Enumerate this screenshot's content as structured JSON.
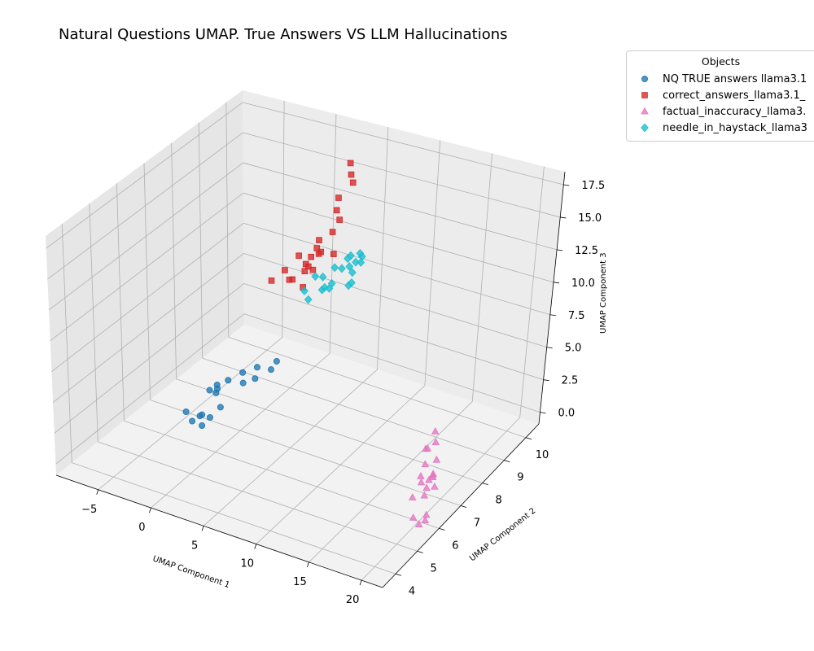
{
  "chart_data": {
    "type": "scatter",
    "projection": "3d",
    "title": "Natural Questions UMAP. True Answers VS LLM Hallucinations",
    "xlabel": "UMAP Component 1",
    "ylabel": "UMAP Component 2",
    "zlabel": "UMAP Component 3",
    "xlim": [
      -9,
      22
    ],
    "ylim": [
      3.4,
      10.6
    ],
    "zlim": [
      -0.9,
      18.5
    ],
    "xticks": [
      "−5",
      "0",
      "5",
      "10",
      "15",
      "20"
    ],
    "yticks": [
      "4",
      "5",
      "6",
      "7",
      "8",
      "9",
      "10"
    ],
    "zticks": [
      "0.0",
      "2.5",
      "5.0",
      "7.5",
      "10.0",
      "12.5",
      "15.0",
      "17.5"
    ],
    "grid": true,
    "legend": {
      "title": "Objects",
      "placement": "upper-right-outside"
    },
    "series": [
      {
        "name": "NQ TRUE answers llama3.1",
        "display_name": "NQ TRUE answers llama3.1",
        "marker": "circle",
        "color": "#1f77b4",
        "points": [
          [
            -3.3,
            8.4,
            0.5
          ],
          [
            -2.6,
            8.7,
            0.6
          ],
          [
            -1.9,
            9.2,
            0.4
          ],
          [
            -3.0,
            8.3,
            -0.1
          ],
          [
            -4.0,
            8.1,
            0.2
          ],
          [
            -4.2,
            7.7,
            -0.2
          ],
          [
            -2.3,
            8.5,
            0.1
          ],
          [
            -4.6,
            7.9,
            0.0
          ],
          [
            -1.7,
            8.9,
            0.3
          ],
          [
            -5.1,
            7.8,
            -0.4
          ],
          [
            -5.1,
            8.1,
            -0.8
          ],
          [
            -3.5,
            7.6,
            -1.0
          ],
          [
            -4.6,
            7.3,
            -1.4
          ],
          [
            -3.8,
            7.3,
            -1.4
          ],
          [
            -6.2,
            7.3,
            -1.6
          ],
          [
            -4.1,
            7.1,
            -1.8
          ],
          [
            -5.6,
            7.3,
            -2.2
          ],
          [
            -5.6,
            7.6,
            -2.3
          ]
        ]
      },
      {
        "name": "correct_answers_llama3.1",
        "display_name": "correct_answers_llama3.1_",
        "marker": "square",
        "color": "#d62728",
        "points": [
          [
            4.0,
            9.6,
            17.2
          ],
          [
            4.1,
            9.6,
            16.3
          ],
          [
            4.3,
            9.6,
            15.7
          ],
          [
            3.2,
            9.5,
            14.4
          ],
          [
            3.3,
            9.4,
            13.6
          ],
          [
            3.6,
            9.4,
            12.9
          ],
          [
            3.2,
            9.3,
            12.0
          ],
          [
            3.6,
            9.2,
            10.5
          ],
          [
            2.4,
            9.1,
            11.5
          ],
          [
            2.2,
            9.1,
            10.8
          ],
          [
            2.6,
            9.1,
            10.6
          ],
          [
            2.4,
            9.1,
            10.4
          ],
          [
            1.9,
            9.0,
            10.2
          ],
          [
            1.9,
            8.9,
            9.6
          ],
          [
            0.7,
            9.0,
            10.0
          ],
          [
            1.4,
            9.0,
            9.5
          ],
          [
            1.3,
            9.0,
            8.9
          ],
          [
            2.1,
            9.0,
            9.2
          ],
          [
            1.4,
            8.9,
            7.8
          ],
          [
            0.6,
            8.8,
            8.4
          ],
          [
            0.1,
            8.7,
            9.2
          ],
          [
            0.3,
            8.8,
            8.3
          ],
          [
            -0.7,
            8.5,
            8.5
          ]
        ]
      },
      {
        "name": "factual_inaccuracy_llama3.1",
        "display_name": "factual_inaccuracy_llama3.",
        "marker": "triangle",
        "color": "#e377c2",
        "points": [
          [
            19.2,
            7.0,
            4.3
          ],
          [
            19.5,
            6.9,
            3.7
          ],
          [
            20.5,
            6.5,
            3.3
          ],
          [
            20.6,
            6.3,
            2.3
          ],
          [
            20.8,
            6.2,
            2.7
          ],
          [
            18.3,
            7.1,
            2.5
          ],
          [
            19.8,
            6.7,
            1.6
          ],
          [
            20.4,
            6.5,
            1.1
          ],
          [
            19.4,
            6.7,
            1.0
          ],
          [
            17.7,
            7.3,
            0.7
          ],
          [
            16.4,
            7.9,
            0.5
          ],
          [
            19.2,
            6.7,
            0.3
          ],
          [
            17.1,
            7.4,
            -0.6
          ],
          [
            17.6,
            7.2,
            -0.6
          ],
          [
            18.8,
            6.8,
            -0.6
          ],
          [
            20.1,
            6.3,
            -0.9
          ],
          [
            19.8,
            6.4,
            -1.6
          ],
          [
            17.0,
            7.1,
            -1.8
          ],
          [
            19.2,
            6.4,
            -2.1
          ],
          [
            18.2,
            6.6,
            -2.2
          ]
        ]
      },
      {
        "name": "needle_in_haystack_llama3.1",
        "display_name": "needle_in_haystack_llama3",
        "marker": "diamond",
        "color": "#17becf",
        "points": [
          [
            5.7,
            9.4,
            10.7
          ],
          [
            5.9,
            9.4,
            10.5
          ],
          [
            5.8,
            9.4,
            10.0
          ],
          [
            5.3,
            9.4,
            9.9
          ],
          [
            4.8,
            9.4,
            10.3
          ],
          [
            4.5,
            9.4,
            10.0
          ],
          [
            4.7,
            9.4,
            9.4
          ],
          [
            5.0,
            9.4,
            9.0
          ],
          [
            5.2,
            9.3,
            8.4
          ],
          [
            4.2,
            9.3,
            9.3
          ],
          [
            3.5,
            9.3,
            9.2
          ],
          [
            4.9,
            9.3,
            8.1
          ],
          [
            3.5,
            9.2,
            8.1
          ],
          [
            2.6,
            9.2,
            8.4
          ],
          [
            2.8,
            9.2,
            7.6
          ],
          [
            2.1,
            9.1,
            8.5
          ],
          [
            3.0,
            9.3,
            7.4
          ],
          [
            2.3,
            9.3,
            7.1
          ],
          [
            1.3,
            9.0,
            7.3
          ],
          [
            1.7,
            9.0,
            6.7
          ]
        ]
      }
    ]
  }
}
